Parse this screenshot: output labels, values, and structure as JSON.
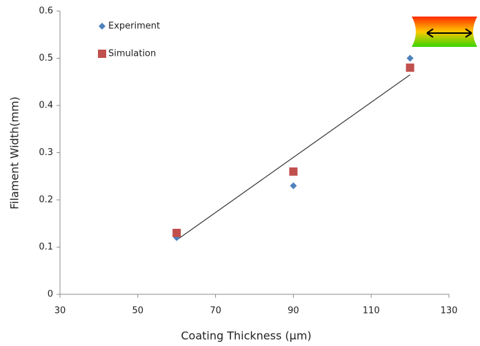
{
  "chart_data": {
    "type": "scatter",
    "x_label": "Coating Thickness (μm)",
    "y_label": "Filament  Width(mm)",
    "xlim": [
      30,
      130
    ],
    "xticks": [
      30,
      50,
      70,
      90,
      110,
      130
    ],
    "ylim": [
      0,
      0.6
    ],
    "yticks": [
      0,
      0.1,
      0.2,
      0.3,
      0.4,
      0.5,
      0.6
    ],
    "grid": false,
    "series": [
      {
        "name": "Experiment",
        "color": "#4f81bd",
        "marker": "diamond",
        "x": [
          60,
          90,
          120
        ],
        "values": [
          0.12,
          0.23,
          0.5
        ]
      },
      {
        "name": "Simulation",
        "color": "#c0504d",
        "marker": "square",
        "x": [
          60,
          90,
          120
        ],
        "values": [
          0.13,
          0.26,
          0.48
        ]
      }
    ],
    "trendline": {
      "color": "#333333",
      "x": [
        60,
        120
      ],
      "values": [
        0.115,
        0.465
      ]
    }
  }
}
